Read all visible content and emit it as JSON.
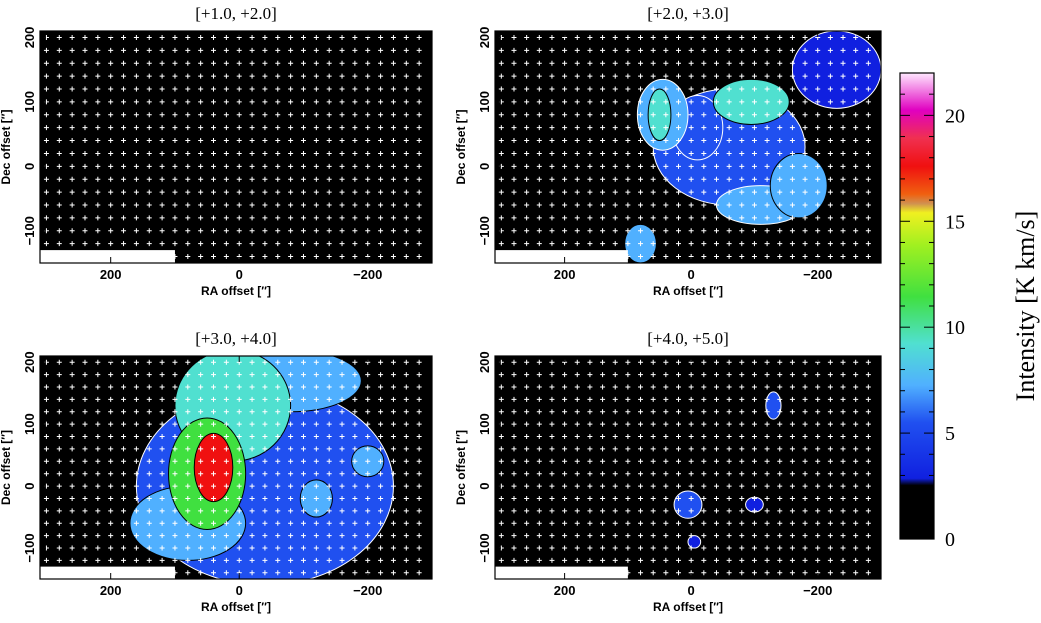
{
  "chart_data": {
    "type": "heatmap",
    "colorbar": {
      "label": "Intensity [K km/s]",
      "range": [
        0,
        22
      ],
      "ticks": [
        0,
        5,
        10,
        15,
        20
      ],
      "colors": [
        "#000000",
        "#2040f0",
        "#40a0ff",
        "#50e0e0",
        "#40e040",
        "#b0f020",
        "#f0f020",
        "#f07010",
        "#f01010",
        "#e000c0",
        "#ffffff"
      ]
    },
    "panels": [
      {
        "title": "[+1.0, +2.0]",
        "xlabel": "RA offset  [″]",
        "ylabel": "Dec offset  [″]",
        "xlim": [
          310,
          -300
        ],
        "ylim": [
          -150,
          210
        ],
        "xticks": [
          "200",
          "0",
          "−200"
        ],
        "yticks": [
          "200",
          "100",
          "0",
          "−100"
        ],
        "features": []
      },
      {
        "title": "[+2.0, +3.0]",
        "xlabel": "RA offset  [″]",
        "ylabel": "Dec offset  [″]",
        "xlim": [
          310,
          -300
        ],
        "ylim": [
          -150,
          210
        ],
        "xticks": [
          "200",
          "0",
          "−200"
        ],
        "yticks": [
          "200",
          "100",
          "0",
          "−100"
        ],
        "features": [
          {
            "x": 45,
            "y": 80,
            "rx": 40,
            "ry": 55,
            "intensity": 8
          },
          {
            "x": -10,
            "y": 60,
            "rx": 40,
            "ry": 50,
            "intensity": 7
          },
          {
            "x": -95,
            "y": 100,
            "rx": 60,
            "ry": 35,
            "intensity": 10
          },
          {
            "x": 50,
            "y": 80,
            "rx": 18,
            "ry": 40,
            "intensity": 11
          },
          {
            "x": -170,
            "y": -30,
            "rx": 45,
            "ry": 50,
            "intensity": 9
          },
          {
            "x": -110,
            "y": -60,
            "rx": 70,
            "ry": 30,
            "intensity": 8
          },
          {
            "x": -60,
            "y": 30,
            "rx": 120,
            "ry": 90,
            "intensity": 6
          },
          {
            "x": 80,
            "y": -120,
            "rx": 25,
            "ry": 30,
            "intensity": 9
          },
          {
            "x": -230,
            "y": 150,
            "rx": 70,
            "ry": 60,
            "intensity": 5
          }
        ]
      },
      {
        "title": "[+3.0, +4.0]",
        "xlabel": "RA offset  [″]",
        "ylabel": "Dec offset  [″]",
        "xlim": [
          310,
          -300
        ],
        "ylim": [
          -150,
          210
        ],
        "xticks": [
          "200",
          "0",
          "−200"
        ],
        "yticks": [
          "200",
          "100",
          "0",
          "−100"
        ],
        "features": [
          {
            "x": 40,
            "y": 30,
            "rx": 30,
            "ry": 55,
            "intensity": 19
          },
          {
            "x": 50,
            "y": 20,
            "rx": 60,
            "ry": 90,
            "intensity": 12
          },
          {
            "x": 10,
            "y": 130,
            "rx": 90,
            "ry": 90,
            "intensity": 10
          },
          {
            "x": -80,
            "y": 170,
            "rx": 110,
            "ry": 50,
            "intensity": 9
          },
          {
            "x": 80,
            "y": -60,
            "rx": 90,
            "ry": 60,
            "intensity": 9
          },
          {
            "x": -40,
            "y": 0,
            "rx": 200,
            "ry": 160,
            "intensity": 6
          },
          {
            "x": -200,
            "y": 40,
            "rx": 25,
            "ry": 25,
            "intensity": 9
          },
          {
            "x": -120,
            "y": -20,
            "rx": 25,
            "ry": 30,
            "intensity": 9
          }
        ]
      },
      {
        "title": "[+4.0, +5.0]",
        "xlabel": "RA offset  [″]",
        "ylabel": "Dec offset  [″]",
        "xlim": [
          310,
          -300
        ],
        "ylim": [
          -150,
          210
        ],
        "xticks": [
          "200",
          "0",
          "−200"
        ],
        "yticks": [
          "200",
          "100",
          "0",
          "−100"
        ],
        "features": [
          {
            "x": 5,
            "y": -30,
            "rx": 22,
            "ry": 22,
            "intensity": 6
          },
          {
            "x": -130,
            "y": 130,
            "rx": 12,
            "ry": 22,
            "intensity": 6
          },
          {
            "x": -100,
            "y": -30,
            "rx": 14,
            "ry": 12,
            "intensity": 5
          },
          {
            "x": -5,
            "y": -90,
            "rx": 10,
            "ry": 10,
            "intensity": 5
          }
        ]
      }
    ]
  }
}
